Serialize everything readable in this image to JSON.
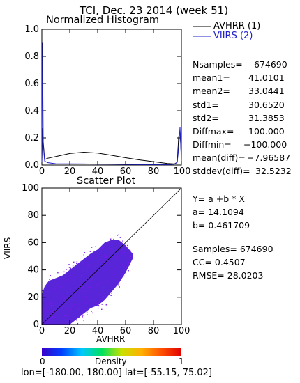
{
  "header": {
    "title": "TCI,  Dec. 23 2014 (week 51)"
  },
  "footer": {
    "lonlat": "lon=[-180.00, 180.00] lat=[-55.15, 75.02]"
  },
  "chart_data": [
    {
      "type": "line",
      "title": "Normalized Histogram",
      "xlim": [
        0,
        100
      ],
      "ylim": [
        0,
        1.0
      ],
      "xticks": [
        "0",
        "20",
        "40",
        "60",
        "80",
        "100"
      ],
      "yticks": [
        "0.0",
        "0.2",
        "0.4",
        "0.6",
        "0.8",
        "1.0"
      ],
      "x_right_label": "100",
      "legend_position": "right",
      "series": [
        {
          "name": "AVHRR (1)",
          "color": "#000000",
          "x": [
            0,
            0.5,
            1,
            2,
            4,
            10,
            20,
            30,
            40,
            50,
            60,
            70,
            80,
            90,
            95,
            97,
            98,
            99,
            100
          ],
          "y": [
            0.01,
            0.27,
            0.17,
            0.04,
            0.05,
            0.063,
            0.085,
            0.095,
            0.088,
            0.072,
            0.054,
            0.038,
            0.025,
            0.012,
            0.008,
            0.02,
            0.2,
            0.25,
            0.05
          ]
        },
        {
          "name": "VIIRS (2)",
          "color": "#1f1fcc",
          "x": [
            0,
            0.5,
            1,
            2,
            4,
            10,
            20,
            30,
            40,
            50,
            60,
            70,
            80,
            90,
            95,
            97,
            98,
            99,
            100
          ],
          "y": [
            0.02,
            0.9,
            0.15,
            0.03,
            0.018,
            0.01,
            0.009,
            0.008,
            0.007,
            0.006,
            0.005,
            0.004,
            0.004,
            0.004,
            0.006,
            0.02,
            0.12,
            0.28,
            0.03
          ]
        }
      ],
      "stats": [
        {
          "label": "Nsamples=",
          "value": "674690"
        },
        {
          "label": "mean1=",
          "value": "41.0101"
        },
        {
          "label": "mean2=",
          "value": "33.0441"
        },
        {
          "label": "std1=",
          "value": "30.6520"
        },
        {
          "label": "std2=",
          "value": "31.3853"
        },
        {
          "label": "Diffmax=",
          "value": "100.000"
        },
        {
          "label": "Diffmin=",
          "value": "−100.000"
        },
        {
          "label": "mean(diff)=",
          "value": "−7.96587"
        },
        {
          "label": "stddev(diff)=",
          "value": "32.5232"
        }
      ]
    },
    {
      "type": "scatter",
      "title": "Scatter Plot",
      "xlabel": "AVHRR",
      "ylabel": "VIIRS",
      "xlim": [
        0,
        100
      ],
      "ylim": [
        0,
        100
      ],
      "xticks": [
        "0",
        "20",
        "40",
        "60",
        "80",
        "100"
      ],
      "yticks": [
        "0",
        "20",
        "40",
        "60",
        "80",
        "100"
      ],
      "reference_line": {
        "from": [
          0,
          0
        ],
        "to": [
          100,
          100
        ]
      },
      "density_cloud": {
        "x": [
          0,
          2,
          5,
          10,
          15,
          20,
          25,
          30,
          35,
          40,
          45,
          50,
          55,
          60,
          65
        ],
        "y_low": [
          0,
          0,
          0,
          0,
          0,
          0,
          4,
          8,
          12,
          14,
          18,
          24,
          30,
          38,
          48
        ],
        "y_high": [
          22,
          28,
          32,
          34,
          36,
          40,
          44,
          48,
          52,
          55,
          60,
          62,
          62,
          58,
          52
        ],
        "core_color": "#4a12d6",
        "outlier_color": "#7a18f0"
      },
      "fit": {
        "equation": "Y= a +b * X",
        "a_label": "a= 14.1094",
        "b_label": "b= 0.461709"
      },
      "stats": [
        "Samples= 674690",
        "CC=  0.4507",
        "RMSE= 28.0203"
      ]
    }
  ],
  "colorbar": {
    "label": "Density",
    "min": "0",
    "max": "1",
    "colors": [
      "#3a00c8",
      "#0040ff",
      "#00c8ff",
      "#00e060",
      "#c8e000",
      "#ffb000",
      "#ff5000",
      "#e00000"
    ]
  }
}
